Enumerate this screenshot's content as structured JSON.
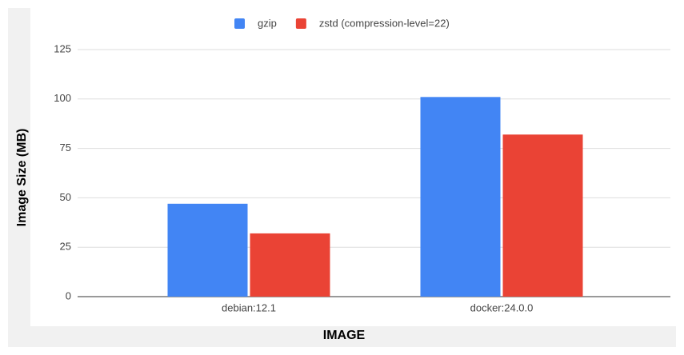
{
  "chart_data": {
    "type": "bar",
    "title_x": "IMAGE",
    "title_y": "Image Size (MB)",
    "categories": [
      "debian:12.1",
      "docker:24.0.0"
    ],
    "series": [
      {
        "name": "gzip",
        "color": "#4285f4",
        "values": [
          47,
          101
        ]
      },
      {
        "name": "zstd (compression-level=22)",
        "color": "#ea4335",
        "values": [
          32,
          82
        ]
      }
    ],
    "ylim": [
      0,
      125
    ],
    "yticks": [
      0,
      25,
      50,
      75,
      100,
      125
    ],
    "grid": true,
    "legend": "top"
  }
}
